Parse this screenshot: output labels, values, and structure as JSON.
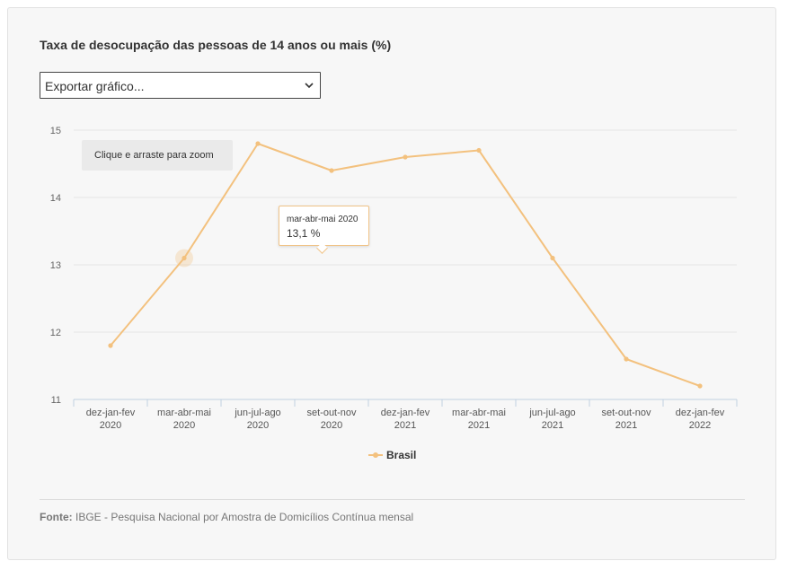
{
  "title": "Taxa de desocupação das pessoas de 14 anos ou mais (%)",
  "export_select": {
    "label": "Exportar gráfico..."
  },
  "zoom_hint": "Clique e arraste para zoom",
  "tooltip": {
    "category": "mar-abr-mai 2020",
    "value": "13,1 %"
  },
  "source": {
    "prefix": "Fonte:",
    "text": "IBGE - Pesquisa Nacional por Amostra de Domicílios Contínua mensal"
  },
  "colors": {
    "series": "#f3c17e",
    "grid": "#e6e6e6",
    "axis": "#c0d0e0"
  },
  "chart_data": {
    "type": "line",
    "title": "Taxa de desocupação das pessoas de 14 anos ou mais (%)",
    "categories": [
      [
        "dez-jan-fev",
        "2020"
      ],
      [
        "mar-abr-mai",
        "2020"
      ],
      [
        "jun-jul-ago",
        "2020"
      ],
      [
        "set-out-nov",
        "2020"
      ],
      [
        "dez-jan-fev",
        "2021"
      ],
      [
        "mar-abr-mai",
        "2021"
      ],
      [
        "jun-jul-ago",
        "2021"
      ],
      [
        "set-out-nov",
        "2021"
      ],
      [
        "dez-jan-fev",
        "2022"
      ]
    ],
    "series": [
      {
        "name": "Brasil",
        "values": [
          11.8,
          13.1,
          14.8,
          14.4,
          14.6,
          14.7,
          13.1,
          11.6,
          11.2
        ]
      }
    ],
    "yticks": [
      "11",
      "12",
      "13",
      "14",
      "15"
    ],
    "ylim": [
      11,
      15
    ],
    "grid": true,
    "legend": "bottom-center",
    "highlighted_index": 1
  }
}
